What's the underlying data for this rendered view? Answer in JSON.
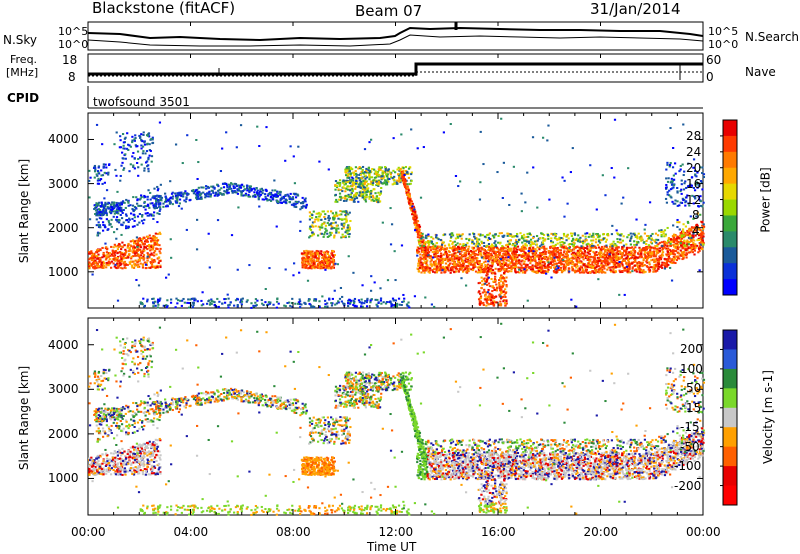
{
  "header": {
    "title": "Blackstone (fitACF)",
    "beam": "Beam 07",
    "date": "31/Jan/2014"
  },
  "panels": {
    "noise": {
      "left_label": "N.Sky",
      "right_label": "N.Search",
      "left_ticks": [
        "10^5",
        "10^0"
      ],
      "right_ticks": [
        "10^5",
        "10^0"
      ]
    },
    "freq": {
      "left_label_line1": "Freq.",
      "left_label_line2": "[MHz]",
      "right_label": "Nave",
      "left_ticks": [
        "18",
        "8"
      ],
      "right_ticks": [
        "60",
        "0"
      ]
    },
    "cpid": {
      "label": "CPID",
      "value": "twofsound 3501"
    }
  },
  "chart_data": [
    {
      "type": "heatmap",
      "name": "power",
      "ylabel": "Slant Range [km]",
      "ylim": [
        180,
        4600
      ],
      "yticks": [
        1000,
        2000,
        3000,
        4000
      ],
      "xlim_hours": [
        0,
        24
      ],
      "colorbar": {
        "label": "Power [dB]",
        "levels": [
          "28",
          "24",
          "20",
          "16",
          "12",
          "8",
          "4"
        ],
        "colors": [
          "#e80000",
          "#ff3a00",
          "#ff7a00",
          "#ffa800",
          "#e6d800",
          "#9ad800",
          "#3aa83a",
          "#2a8a6a",
          "#1a5a9a",
          "#0a30d8",
          "#0000ff"
        ]
      }
    },
    {
      "type": "heatmap",
      "name": "velocity",
      "ylabel": "Slant Range [km]",
      "ylim": [
        180,
        4600
      ],
      "yticks": [
        1000,
        2000,
        3000,
        4000
      ],
      "xlim_hours": [
        0,
        24
      ],
      "colorbar": {
        "label": "Velocity [m s-1]",
        "levels": [
          "200",
          "100",
          "50",
          "15",
          "-15",
          "-50",
          "-100",
          "-200"
        ],
        "colors": [
          "#1a1aa8",
          "#2a5ad8",
          "#2a8a3a",
          "#7ad82a",
          "#c8c8c8",
          "#ffa000",
          "#ff6000",
          "#e80000",
          "#ff0000"
        ]
      }
    }
  ],
  "xaxis": {
    "ticks": [
      "00:00",
      "04:00",
      "08:00",
      "12:00",
      "16:00",
      "20:00",
      "00:00"
    ],
    "label": "Time UT"
  }
}
